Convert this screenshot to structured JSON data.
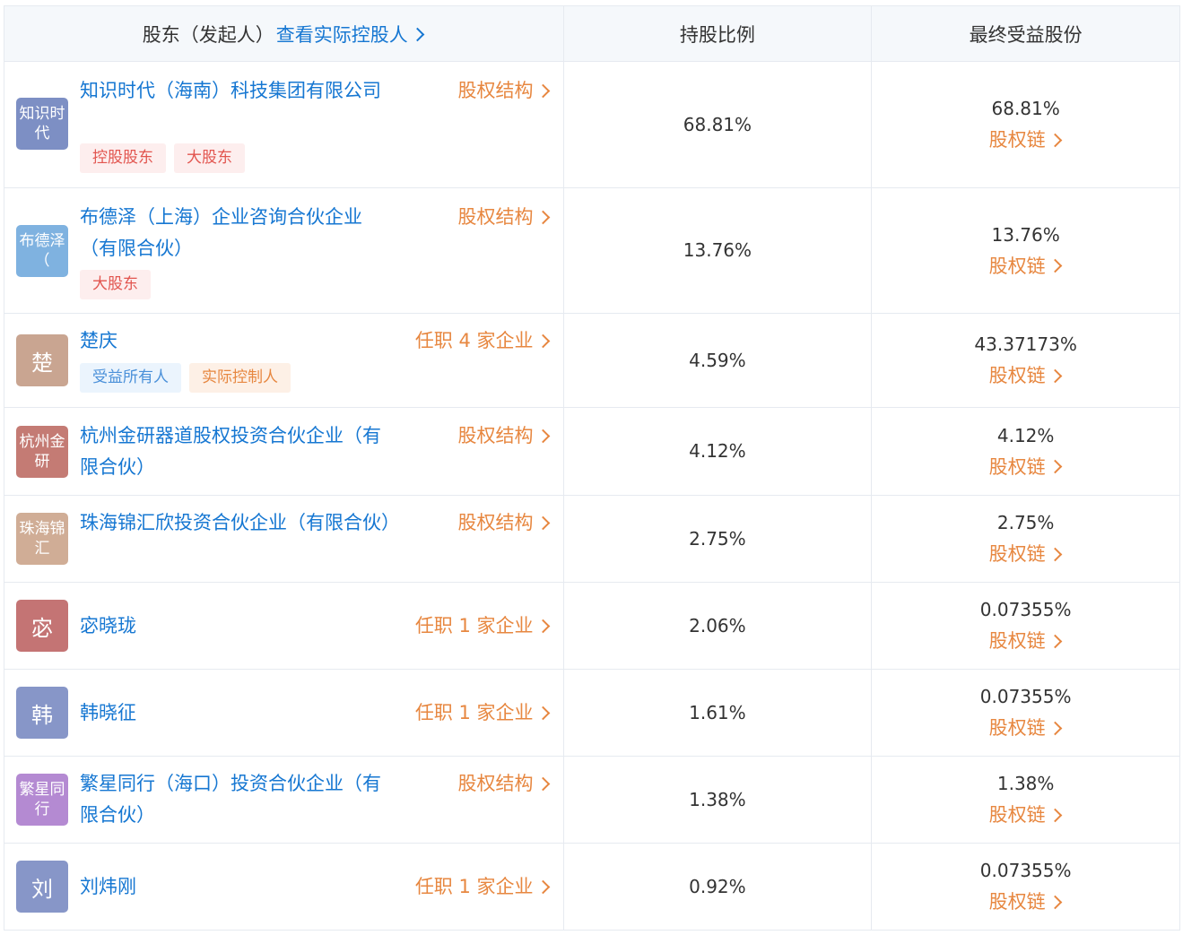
{
  "header": {
    "col1_title": "股东（发起人）",
    "col1_link": "查看实际控股人",
    "col2_title": "持股比例",
    "col3_title": "最终受益股份"
  },
  "rows": [
    {
      "avatar": "知识时代",
      "avatar_color": "#7d8fc4",
      "name": "知识时代（海南）科技集团有限公司",
      "tags": [
        {
          "label": "控股股东",
          "style": "red"
        },
        {
          "label": "大股东",
          "style": "red"
        }
      ],
      "action": "股权结构",
      "ratio": "68.81%",
      "benefit": "68.81%",
      "chain": "股权链"
    },
    {
      "avatar": "布德泽（",
      "avatar_color": "#7fb2e0",
      "name": "布德泽（上海）企业咨询合伙企业（有限合伙）",
      "tags": [
        {
          "label": "大股东",
          "style": "red"
        }
      ],
      "action": "股权结构",
      "ratio": "13.76%",
      "benefit": "13.76%",
      "chain": "股权链"
    },
    {
      "avatar": "楚",
      "avatar_color": "#c9a591",
      "name": "楚庆",
      "tags": [
        {
          "label": "受益所有人",
          "style": "blue"
        },
        {
          "label": "实际控制人",
          "style": "orange"
        }
      ],
      "action": "任职 4 家企业",
      "ratio": "4.59%",
      "benefit": "43.37173%",
      "chain": "股权链"
    },
    {
      "avatar": "杭州金研",
      "avatar_color": "#c47b74",
      "name": "杭州金研器道股权投资合伙企业（有限合伙）",
      "tags": [],
      "action": "股权结构",
      "ratio": "4.12%",
      "benefit": "4.12%",
      "chain": "股权链"
    },
    {
      "avatar": "珠海锦汇",
      "avatar_color": "#d0ad96",
      "name": "珠海锦汇欣投资合伙企业（有限合伙）",
      "tags": [],
      "action": "股权结构",
      "ratio": "2.75%",
      "benefit": "2.75%",
      "chain": "股权链"
    },
    {
      "avatar": "宓",
      "avatar_color": "#c47474",
      "name": "宓晓珑",
      "tags": [],
      "action": "任职 1 家企业",
      "ratio": "2.06%",
      "benefit": "0.07355%",
      "chain": "股权链"
    },
    {
      "avatar": "韩",
      "avatar_color": "#8796c8",
      "name": "韩晓征",
      "tags": [],
      "action": "任职 1 家企业",
      "ratio": "1.61%",
      "benefit": "0.07355%",
      "chain": "股权链"
    },
    {
      "avatar": "繁星同行",
      "avatar_color": "#b48ad2",
      "name": "繁星同行（海口）投资合伙企业（有限合伙）",
      "tags": [],
      "action": "股权结构",
      "ratio": "1.38%",
      "benefit": "1.38%",
      "chain": "股权链"
    },
    {
      "avatar": "刘",
      "avatar_color": "#8796c8",
      "name": "刘炜刚",
      "tags": [],
      "action": "任职 1 家企业",
      "ratio": "0.92%",
      "benefit": "0.07355%",
      "chain": "股权链"
    }
  ]
}
